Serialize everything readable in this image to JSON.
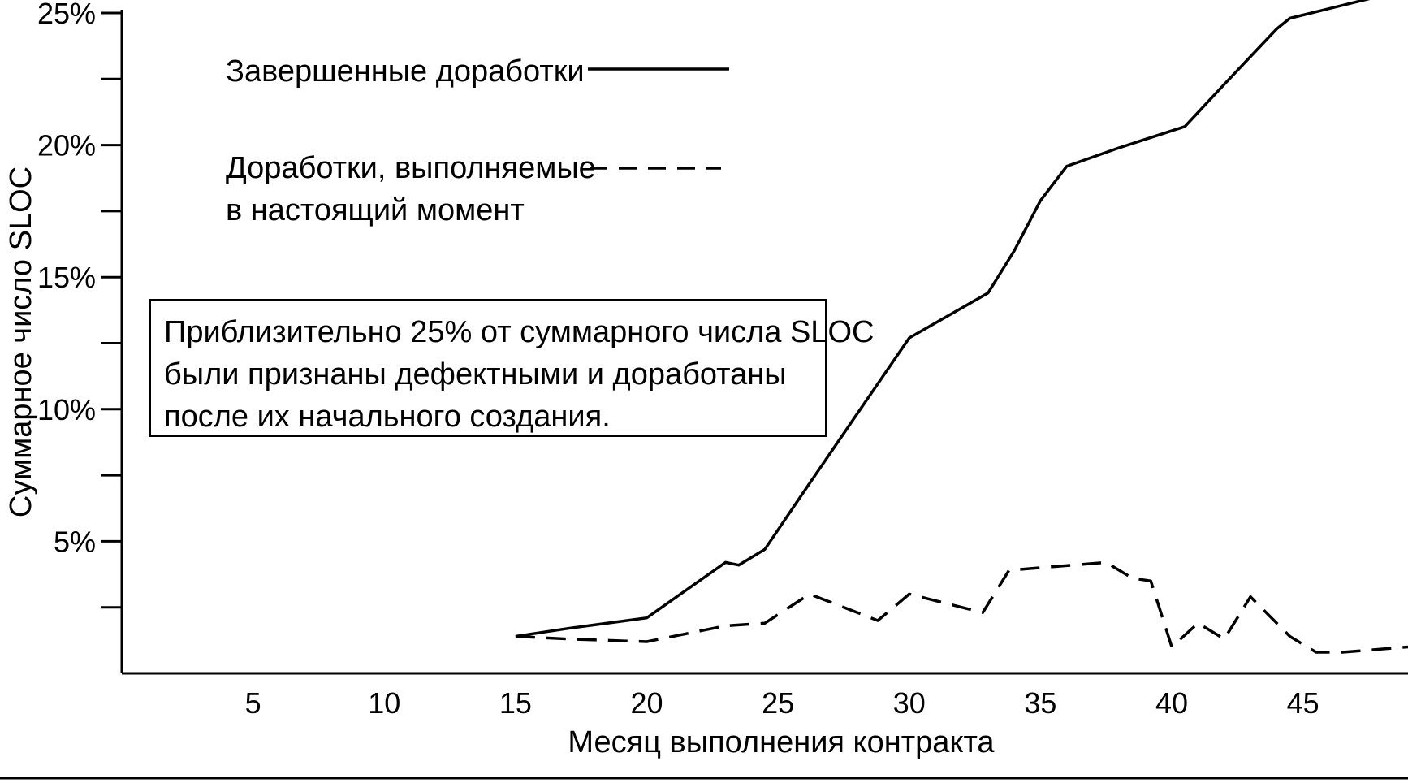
{
  "chart_data": {
    "type": "line",
    "title": "",
    "xlabel": "Месяц выполнения контракта",
    "ylabel": "Суммарное число SLOC",
    "xlim": [
      0,
      49
    ],
    "ylim": [
      0,
      25
    ],
    "x_ticks": [
      5,
      10,
      15,
      20,
      25,
      30,
      35,
      40,
      45
    ],
    "x_tick_labels": [
      "5",
      "10",
      "15",
      "20",
      "25",
      "30",
      "35",
      "40",
      "45"
    ],
    "y_major_ticks": [
      5,
      10,
      15,
      20,
      25
    ],
    "y_tick_labels": [
      "5%",
      "10%",
      "15%",
      "20%",
      "25%"
    ],
    "y_minor_ticks": [
      2.5,
      7.5,
      12.5,
      17.5,
      22.5
    ],
    "grid": false,
    "legend_position": "top-left",
    "series": [
      {
        "name": "Завершенные доработки",
        "style": "solid",
        "color": "#000000",
        "points": [
          [
            15,
            1.4
          ],
          [
            17,
            1.7
          ],
          [
            20,
            2.1
          ],
          [
            23,
            4.2
          ],
          [
            23.5,
            4.1
          ],
          [
            24.5,
            4.7
          ],
          [
            26,
            6.9
          ],
          [
            28,
            9.8
          ],
          [
            30,
            12.7
          ],
          [
            33,
            14.4
          ],
          [
            34,
            16.0
          ],
          [
            35,
            17.9
          ],
          [
            36,
            19.2
          ],
          [
            38,
            19.9
          ],
          [
            40.5,
            20.7
          ],
          [
            42,
            22.3
          ],
          [
            44,
            24.4
          ],
          [
            44.5,
            24.8
          ],
          [
            49,
            25.9
          ]
        ]
      },
      {
        "name": "Доработки, выполняемые в настоящий момент",
        "style": "dashed",
        "color": "#000000",
        "points": [
          [
            15,
            1.4
          ],
          [
            17,
            1.3
          ],
          [
            20,
            1.2
          ],
          [
            23,
            1.8
          ],
          [
            24.5,
            1.9
          ],
          [
            26.2,
            3.0
          ],
          [
            28.8,
            2.0
          ],
          [
            30,
            3.0
          ],
          [
            32.8,
            2.3
          ],
          [
            33.8,
            3.9
          ],
          [
            35,
            4.0
          ],
          [
            37.5,
            4.2
          ],
          [
            38.5,
            3.6
          ],
          [
            39.2,
            3.5
          ],
          [
            40,
            1.0
          ],
          [
            41,
            1.9
          ],
          [
            42,
            1.3
          ],
          [
            43,
            2.9
          ],
          [
            44.5,
            1.4
          ],
          [
            45.5,
            0.8
          ],
          [
            46.5,
            0.8
          ],
          [
            49,
            1.0
          ]
        ]
      }
    ],
    "legend": {
      "solid_label": "Завершенные доработки",
      "dashed_label_line1": "Доработки, выполняемые",
      "dashed_label_line2": "в настоящий момент"
    },
    "annotation": {
      "line1": "Приблизительно 25% от суммарного числа SLOC",
      "line2": "были признаны дефектными и доработаны",
      "line3": "после их начального создания."
    }
  }
}
